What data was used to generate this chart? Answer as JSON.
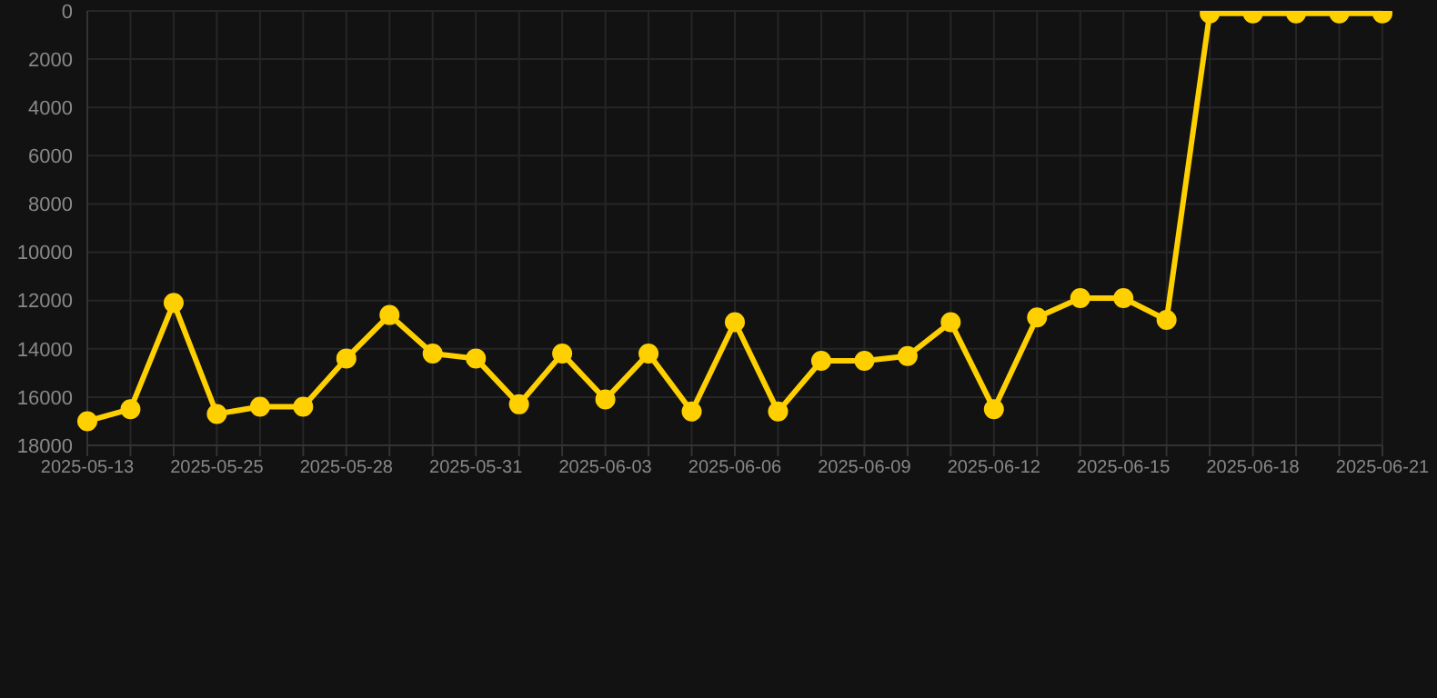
{
  "chart_data": {
    "type": "line",
    "categories": [
      "2025-05-13",
      null,
      null,
      "2025-05-25",
      null,
      null,
      "2025-05-28",
      null,
      null,
      "2025-05-31",
      null,
      null,
      "2025-06-03",
      null,
      null,
      "2025-06-06",
      null,
      null,
      "2025-06-09",
      null,
      null,
      "2025-06-12",
      null,
      null,
      "2025-06-15",
      null,
      null,
      "2025-06-18",
      null,
      null,
      "2025-06-21"
    ],
    "series": [
      {
        "color": "#ffd000",
        "values": [
          17000,
          16500,
          12100,
          16700,
          16400,
          16400,
          14400,
          12600,
          14200,
          14400,
          16300,
          14200,
          16100,
          14200,
          16600,
          12900,
          16600,
          14500,
          14500,
          14300,
          12900,
          16500,
          12700,
          11900,
          11900,
          12800,
          100,
          100,
          100,
          100,
          100
        ]
      }
    ],
    "ylim": [
      18000,
      0
    ],
    "yticks": [
      0,
      2000,
      4000,
      6000,
      8000,
      10000,
      12000,
      14000,
      16000,
      18000
    ],
    "grid": true,
    "marker": "circle",
    "legend": false
  }
}
